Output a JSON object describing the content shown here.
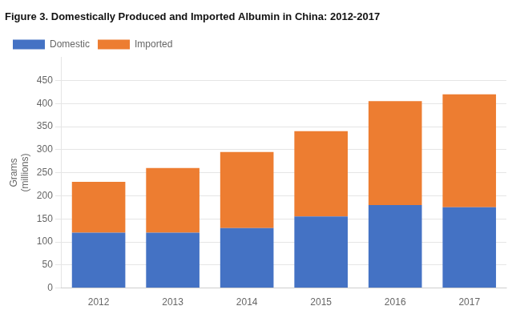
{
  "chart_data": {
    "type": "bar",
    "stacked": true,
    "title": "Figure 3. Domestically Produced and Imported Albumin in China: 2012-2017",
    "ylabel": [
      "Grams",
      "(millions)"
    ],
    "categories": [
      "2012",
      "2013",
      "2014",
      "2015",
      "2016",
      "2017"
    ],
    "series": [
      {
        "name": "Domestic",
        "color": "#4472C4",
        "values": [
          120,
          120,
          130,
          155,
          180,
          175
        ]
      },
      {
        "name": "Imported",
        "color": "#ED7D31",
        "values": [
          110,
          140,
          165,
          185,
          225,
          245
        ]
      }
    ],
    "ylim": [
      0,
      500
    ],
    "yticks": [
      0,
      50,
      100,
      150,
      200,
      250,
      300,
      350,
      400,
      450
    ],
    "grid": true,
    "legend": "upper left"
  }
}
